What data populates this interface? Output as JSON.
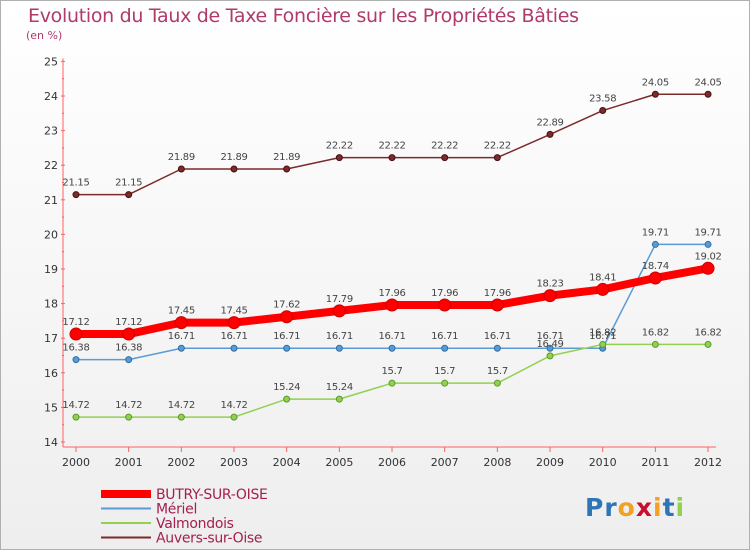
{
  "title": "Evolution du Taux de Taxe Foncière sur les Propriétés Bâties",
  "subtitle": "(en %)",
  "logo_text": "Proxiti",
  "chart_data": {
    "type": "line",
    "title": "Evolution du Taux de Taxe Foncière sur les Propriétés Bâties",
    "ylabel": "(en %)",
    "xlabel": "",
    "x": [
      "2000",
      "2001",
      "2002",
      "2003",
      "2004",
      "2005",
      "2006",
      "2007",
      "2008",
      "2009",
      "2010",
      "2011",
      "2012"
    ],
    "ylim": [
      14,
      25
    ],
    "yticks": [
      14,
      15,
      16,
      17,
      18,
      19,
      20,
      21,
      22,
      23,
      24,
      25
    ],
    "grid": false,
    "legend_position": "bottom-left",
    "series": [
      {
        "name": "BUTRY-SUR-OISE",
        "color": "#ff0000",
        "values": [
          17.12,
          17.12,
          17.45,
          17.45,
          17.62,
          17.79,
          17.96,
          17.96,
          17.96,
          18.23,
          18.41,
          18.74,
          19.02
        ]
      },
      {
        "name": "Mériel",
        "color": "#5b9bd5",
        "values": [
          16.38,
          16.38,
          16.71,
          16.71,
          16.71,
          16.71,
          16.71,
          16.71,
          16.71,
          16.71,
          16.71,
          19.71,
          19.71
        ]
      },
      {
        "name": "Valmondois",
        "color": "#92d050",
        "values": [
          14.72,
          14.72,
          14.72,
          14.72,
          15.24,
          15.24,
          15.7,
          15.7,
          15.7,
          16.49,
          16.82,
          16.82,
          16.82
        ]
      },
      {
        "name": "Auvers-sur-Oise",
        "color": "#7b2b2b",
        "values": [
          21.15,
          21.15,
          21.89,
          21.89,
          21.89,
          22.22,
          22.22,
          22.22,
          22.22,
          22.89,
          23.58,
          24.05,
          24.05
        ]
      }
    ],
    "data_labels": [
      [
        "17.12",
        "17.12",
        "17.45",
        "17.45",
        "17.62",
        "17.79",
        "17.96",
        "17.96",
        "17.96",
        "18.23",
        "18.41",
        "18.74",
        "19.02"
      ],
      [
        "16.38",
        "16.38",
        "16.71",
        "16.71",
        "16.71",
        "16.71",
        "16.71",
        "16.71",
        "16.71",
        "16.71",
        "16.71",
        "19.71",
        "19.71"
      ],
      [
        "14.72",
        "14.72",
        "14.72",
        "14.72",
        "15.24",
        "15.24",
        "15.7",
        "15.7",
        "15.7",
        "16.49",
        "16.82",
        "16.82",
        "16.82"
      ],
      [
        "21.15",
        "21.15",
        "21.89",
        "21.89",
        "21.89",
        "22.22",
        "22.22",
        "22.22",
        "22.22",
        "22.89",
        "23.58",
        "24.05",
        "24.05"
      ]
    ]
  }
}
